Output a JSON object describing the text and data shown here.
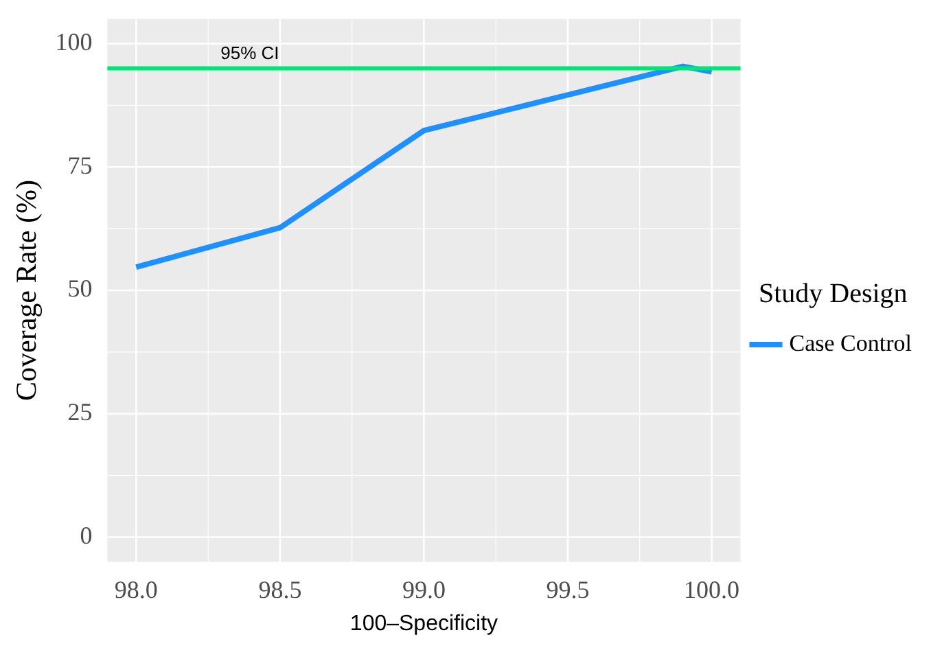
{
  "chart_data": {
    "type": "line",
    "xlabel": "100–Specificity",
    "ylabel": "Coverage Rate (%)",
    "legend_title": "Study Design",
    "x": [
      98.0,
      98.5,
      99.0,
      99.9,
      100.0
    ],
    "series": [
      {
        "name": "Case Control",
        "color": "#1e90ff",
        "values": [
          54.7,
          62.7,
          82.4,
          95.4,
          94.3
        ]
      }
    ],
    "xlim": [
      97.9,
      100.1
    ],
    "xticks": [
      {
        "value": 98,
        "label": "98.0"
      },
      98.5,
      {
        "value": 99,
        "label": "99.0"
      },
      99.5,
      {
        "value": 100,
        "label": "100.0"
      }
    ],
    "ylim": [
      -5,
      105
    ],
    "yticks": [
      0,
      25,
      50,
      75,
      100
    ],
    "ref_lines": [
      {
        "axis": "y",
        "value": 95,
        "label": "95% CI",
        "color": "#00e676"
      }
    ],
    "grid": true,
    "legend": "right",
    "marker": "none",
    "line_style": "solid"
  }
}
